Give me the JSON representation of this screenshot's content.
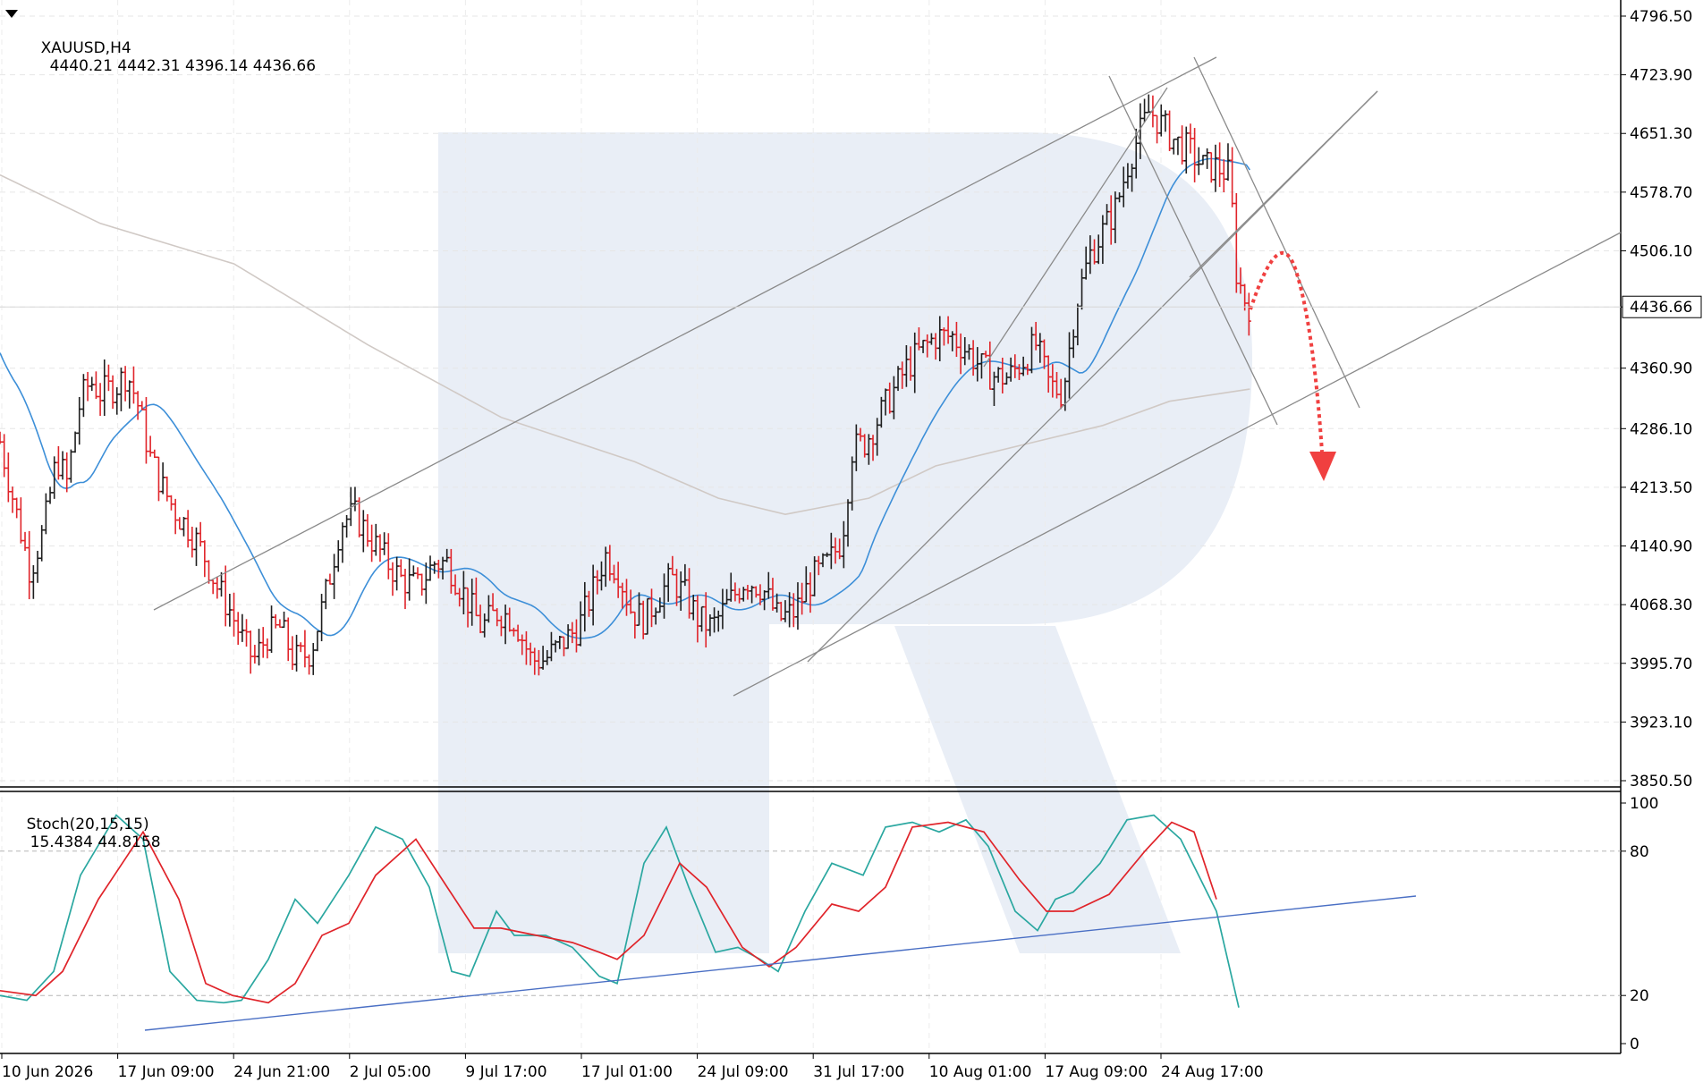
{
  "header": {
    "symbol": "XAUUSD,H4",
    "ohlc": "4440.21 4442.31 4396.14 4436.66"
  },
  "stoch_header": {
    "label": "Stoch(20,15,15)",
    "values": "15.4384 44.8158"
  },
  "colors": {
    "bull": "#1e1e1e",
    "bear": "#e0242a",
    "ma_fast": "#3d8fd8",
    "ma_slow": "#d0c9c5",
    "trend": "#8a8a8a",
    "stoch_main": "#2aa7a0",
    "stoch_signal": "#e0242a",
    "stoch_trend": "#4a6fc4",
    "forecast": "#f04040",
    "watermark": "#e9eef6"
  },
  "chart_data": [
    {
      "type": "candlestick",
      "title": "XAUUSD,H4",
      "y_ticks": [
        "4796.50",
        "4723.90",
        "4651.30",
        "4578.70",
        "4506.10",
        "4436.66",
        "4360.90",
        "4286.10",
        "4213.50",
        "4140.90",
        "4068.30",
        "3995.70",
        "3923.10",
        "3850.50"
      ],
      "ylim": [
        3850.5,
        4796.5
      ],
      "current_price": 4436.66,
      "x_ticks": [
        "10 Jun 2026",
        "17 Jun 09:00",
        "24 Jun 21:00",
        "2 Jul 05:00",
        "9 Jul 17:00",
        "17 Jul 01:00",
        "24 Jul 09:00",
        "31 Jul 17:00",
        "10 Aug 01:00",
        "17 Aug 09:00",
        "24 Aug 17:00"
      ],
      "price_path": [
        [
          0,
          4270
        ],
        [
          10,
          4180
        ],
        [
          18,
          4110
        ],
        [
          26,
          4160
        ],
        [
          34,
          4250
        ],
        [
          40,
          4220
        ],
        [
          48,
          4320
        ],
        [
          54,
          4345
        ],
        [
          60,
          4330
        ],
        [
          70,
          4340
        ],
        [
          76,
          4355
        ],
        [
          82,
          4320
        ],
        [
          90,
          4250
        ],
        [
          98,
          4210
        ],
        [
          106,
          4180
        ],
        [
          114,
          4160
        ],
        [
          122,
          4130
        ],
        [
          130,
          4090
        ],
        [
          138,
          4060
        ],
        [
          146,
          4020
        ],
        [
          152,
          4000
        ],
        [
          160,
          4030
        ],
        [
          168,
          4040
        ],
        [
          176,
          4000
        ],
        [
          186,
          4010
        ],
        [
          196,
          4090
        ],
        [
          204,
          4170
        ],
        [
          212,
          4180
        ],
        [
          222,
          4150
        ],
        [
          232,
          4120
        ],
        [
          240,
          4100
        ],
        [
          250,
          4090
        ],
        [
          260,
          4120
        ],
        [
          268,
          4120
        ],
        [
          278,
          4080
        ],
        [
          288,
          4040
        ],
        [
          298,
          4060
        ],
        [
          308,
          4050
        ],
        [
          318,
          4000
        ],
        [
          326,
          4000
        ],
        [
          336,
          4020
        ],
        [
          346,
          4040
        ],
        [
          354,
          4080
        ],
        [
          362,
          4130
        ],
        [
          370,
          4110
        ],
        [
          378,
          4060
        ],
        [
          386,
          4050
        ],
        [
          394,
          4080
        ],
        [
          402,
          4100
        ],
        [
          410,
          4080
        ],
        [
          418,
          4050
        ],
        [
          426,
          4040
        ],
        [
          436,
          4070
        ],
        [
          446,
          4100
        ],
        [
          456,
          4090
        ],
        [
          466,
          4050
        ],
        [
          476,
          4060
        ],
        [
          486,
          4100
        ],
        [
          496,
          4120
        ],
        [
          504,
          4150
        ],
        [
          510,
          4260
        ],
        [
          518,
          4270
        ],
        [
          526,
          4300
        ],
        [
          534,
          4330
        ],
        [
          542,
          4360
        ],
        [
          550,
          4380
        ],
        [
          560,
          4400
        ],
        [
          570,
          4400
        ],
        [
          580,
          4380
        ],
        [
          588,
          4360
        ],
        [
          596,
          4350
        ],
        [
          604,
          4350
        ],
        [
          612,
          4370
        ],
        [
          620,
          4390
        ],
        [
          628,
          4340
        ],
        [
          636,
          4330
        ],
        [
          644,
          4440
        ],
        [
          652,
          4500
        ],
        [
          660,
          4530
        ],
        [
          668,
          4560
        ],
        [
          676,
          4620
        ],
        [
          682,
          4650
        ],
        [
          688,
          4680
        ],
        [
          696,
          4660
        ],
        [
          704,
          4640
        ],
        [
          712,
          4630
        ],
        [
          720,
          4610
        ],
        [
          728,
          4610
        ],
        [
          736,
          4600
        ],
        [
          740,
          4480
        ],
        [
          744,
          4450
        ],
        [
          748,
          4437
        ]
      ]
    },
    {
      "type": "line",
      "title": "Stoch(20,15,15)",
      "y_ticks": [
        "100",
        "80",
        "20",
        "0"
      ],
      "ylim": [
        0,
        100
      ],
      "levels": [
        80,
        20
      ],
      "main_last": 15.4384,
      "signal_last": 44.8158
    }
  ]
}
